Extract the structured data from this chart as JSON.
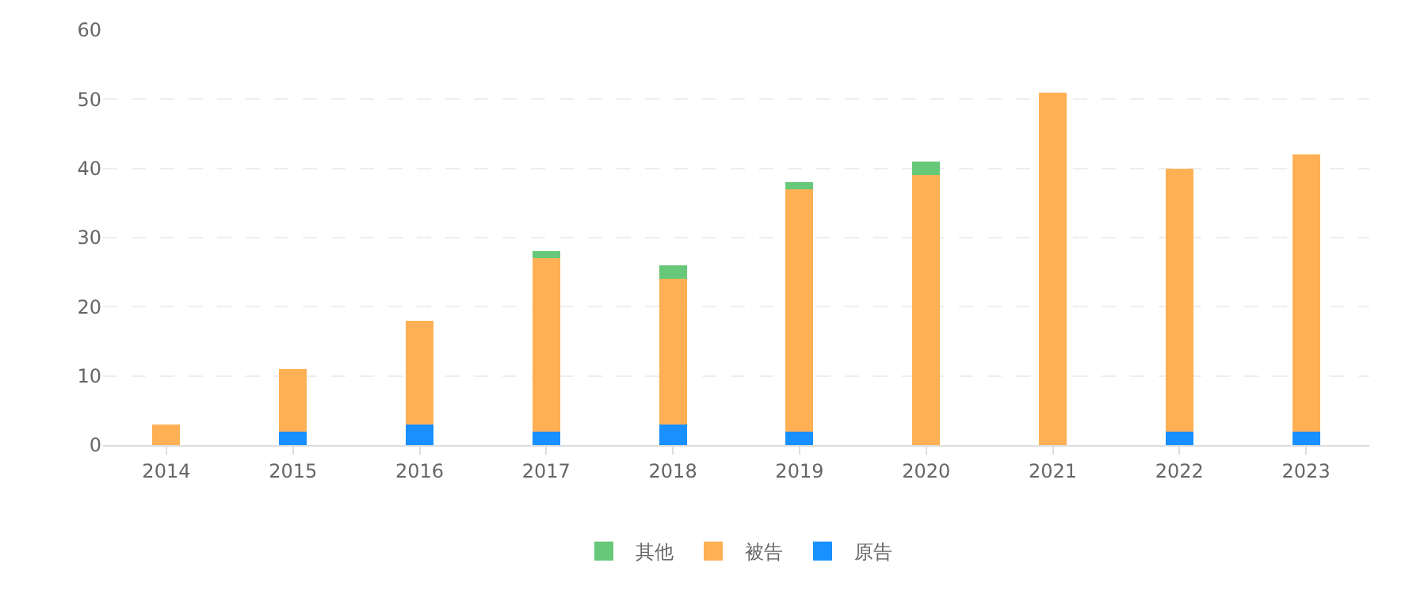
{
  "chart_data": {
    "type": "bar",
    "stacked": true,
    "categories": [
      "2014",
      "2015",
      "2016",
      "2017",
      "2018",
      "2019",
      "2020",
      "2021",
      "2022",
      "2023"
    ],
    "series": [
      {
        "name": "原告",
        "color": "#1890ff",
        "values": [
          0,
          2,
          3,
          2,
          3,
          2,
          0,
          0,
          2,
          2
        ]
      },
      {
        "name": "被告",
        "color": "#ffb055",
        "values": [
          3,
          9,
          15,
          25,
          21,
          35,
          39,
          51,
          38,
          40
        ]
      },
      {
        "name": "其他",
        "color": "#66c878",
        "values": [
          0,
          0,
          0,
          1,
          2,
          1,
          2,
          0,
          0,
          0
        ]
      }
    ],
    "ylim": [
      0,
      60
    ],
    "yticks": [
      0,
      10,
      20,
      30,
      40,
      50,
      60
    ],
    "grid": "y",
    "legend": "bottom"
  }
}
